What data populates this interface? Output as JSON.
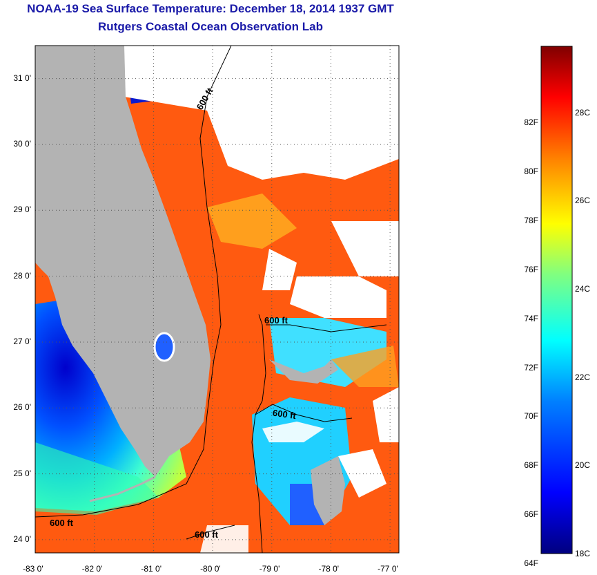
{
  "header": {
    "title": "NOAA-19 Sea Surface Temperature:  December 18, 2014 1937 GMT",
    "subtitle": "Rutgers Coastal Ocean Observation Lab"
  },
  "map": {
    "lat_labels": [
      "31 0'",
      "30 0'",
      "29 0'",
      "28 0'",
      "27 0'",
      "26 0'",
      "25 0'",
      "24 0'"
    ],
    "lon_labels": [
      "-83 0'",
      "-82 0'",
      "-81 0'",
      "-80 0'",
      "-79 0'",
      "-78 0'",
      "-77 0'"
    ],
    "lat_range": [
      23.8,
      31.5
    ],
    "lon_range": [
      -83.0,
      -76.85
    ],
    "contour_labels": [
      "600 ft",
      "600 ft",
      "600 ft",
      "600 ft",
      "600 ft"
    ],
    "colors": {
      "land": "#b3b3b3",
      "cloud": "#ffffff",
      "grid": "#555555"
    }
  },
  "colorbar": {
    "fahrenheit": [
      "82F",
      "80F",
      "78F",
      "76F",
      "74F",
      "72F",
      "70F",
      "68F",
      "66F",
      "64F"
    ],
    "celsius": [
      "28C",
      "26C",
      "24C",
      "22C",
      "20C",
      "18C"
    ],
    "range_c": [
      18,
      29.5
    ],
    "colors": [
      "#00007f",
      "#0000ff",
      "#0080ff",
      "#00ffff",
      "#80ff80",
      "#ffff00",
      "#ff8000",
      "#ff0000",
      "#7f0000"
    ]
  }
}
